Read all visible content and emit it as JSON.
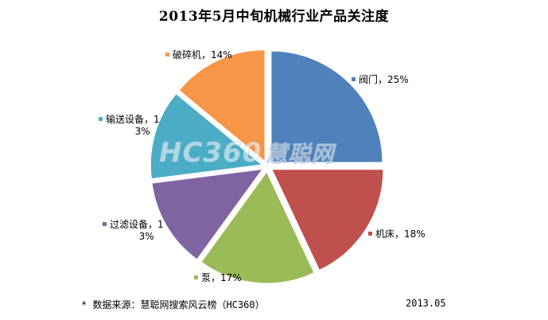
{
  "chart_data": {
    "type": "pie",
    "title": "2013年5月中旬机械行业产品关注度",
    "slices": [
      {
        "name": "阀门",
        "value": 25,
        "label": "阀门，25%",
        "color": "#4F81BD"
      },
      {
        "name": "机床",
        "value": 18,
        "label": "机床，18%",
        "color": "#C0504D"
      },
      {
        "name": "泵",
        "value": 17,
        "label": "泵，17%",
        "color": "#9BBB59"
      },
      {
        "name": "过滤设备",
        "value": 13,
        "label": [
          "过滤设备，1",
          "3%"
        ],
        "color": "#8064A2"
      },
      {
        "name": "输送设备",
        "value": 13,
        "label": [
          "输送设备，1",
          "3%"
        ],
        "color": "#4BACC6"
      },
      {
        "name": "破碎机",
        "value": 14,
        "label": "破碎机，14%",
        "color": "#F79646"
      }
    ]
  },
  "footer": {
    "source": "* 数据来源：慧聪网搜索风云榜（HC360）",
    "date": "2013.05"
  },
  "watermark": {
    "brand": "HC360",
    "brand_cn": "慧聪网"
  }
}
